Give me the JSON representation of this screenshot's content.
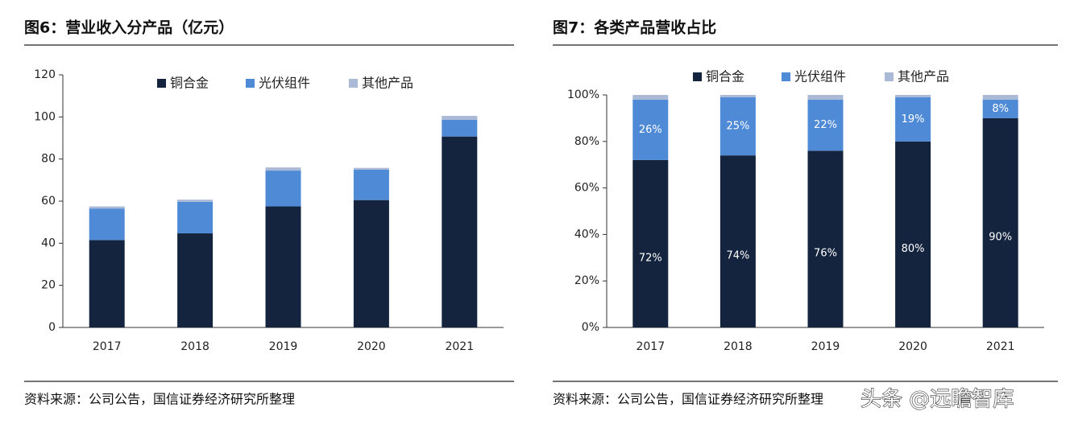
{
  "chart_data": [
    {
      "type": "stacked_bar",
      "title": "图6：营业收入分产品（亿元）",
      "categories": [
        "2017",
        "2018",
        "2019",
        "2020",
        "2021"
      ],
      "series": [
        {
          "name": "铜合金",
          "color": "#14243f",
          "values": [
            41.5,
            44.7,
            57.5,
            60.5,
            90.7
          ]
        },
        {
          "name": "光伏组件",
          "color": "#4f8ad6",
          "values": [
            15,
            15,
            17,
            14.5,
            8
          ]
        },
        {
          "name": "其他产品",
          "color": "#a9b9d6",
          "values": [
            1,
            1,
            1.5,
            0.8,
            1.8
          ]
        }
      ],
      "ylim": [
        0,
        120
      ],
      "yticks": [
        0,
        20,
        40,
        60,
        80,
        100,
        120
      ],
      "grid": false,
      "source": "资料来源：公司公告，国信证券经济研究所整理"
    },
    {
      "type": "stacked_bar",
      "title": "图7：各类产品营收占比",
      "categories": [
        "2017",
        "2018",
        "2019",
        "2020",
        "2021"
      ],
      "series": [
        {
          "name": "铜合金",
          "color": "#14243f",
          "values": [
            72,
            74,
            76,
            80,
            90
          ],
          "value_labels": [
            "72%",
            "74%",
            "76%",
            "80%",
            "90%"
          ]
        },
        {
          "name": "光伏组件",
          "color": "#4f8ad6",
          "values": [
            26,
            25,
            22,
            19,
            8
          ],
          "value_labels": [
            "26%",
            "25%",
            "22%",
            "19%",
            "8%"
          ]
        },
        {
          "name": "其他产品",
          "color": "#a9b9d6",
          "values": [
            2,
            1,
            2,
            1,
            2
          ]
        }
      ],
      "ylim": [
        0,
        100
      ],
      "yticks": [
        {
          "value": 0,
          "label": "0%"
        },
        {
          "value": 20,
          "label": "20%"
        },
        {
          "value": 40,
          "label": "40%"
        },
        {
          "value": 60,
          "label": "60%"
        },
        {
          "value": 80,
          "label": "80%"
        },
        {
          "value": 100,
          "label": "100%"
        }
      ],
      "grid": false,
      "source": "资料来源：公司公告，国信证券经济研究所整理"
    }
  ],
  "watermark": "头条 @远瞻智库"
}
